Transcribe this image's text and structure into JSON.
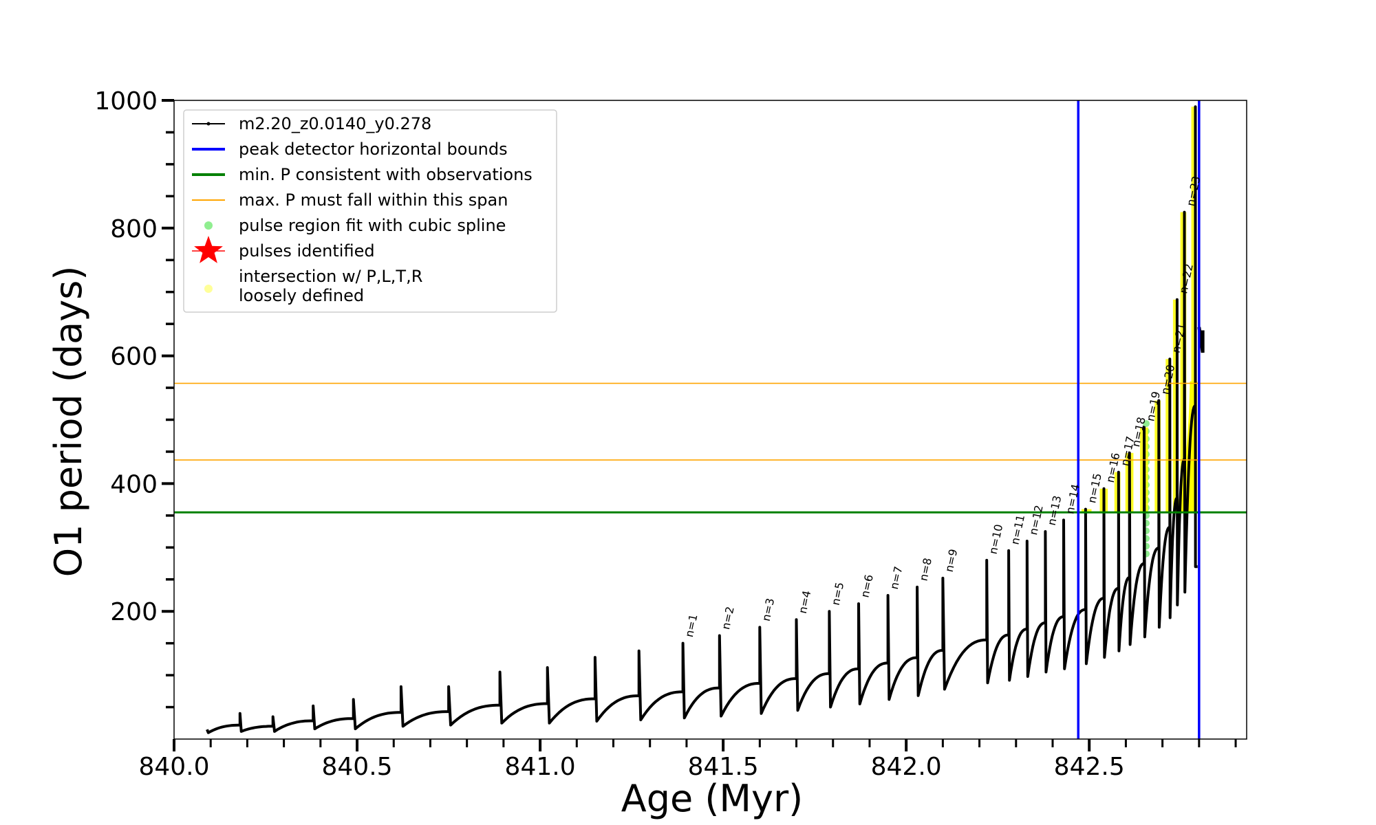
{
  "chart_data": {
    "type": "line",
    "xlabel": "Age (Myr)",
    "ylabel": "O1 period (days)",
    "xlim": [
      840.0,
      842.93
    ],
    "ylim": [
      0,
      1000
    ],
    "x_ticks": [
      840.0,
      840.5,
      841.0,
      841.5,
      842.0,
      842.5
    ],
    "x_tick_labels": [
      "840.0",
      "840.5",
      "841.0",
      "841.5",
      "842.0",
      "842.5"
    ],
    "y_ticks": [
      200,
      400,
      600,
      800,
      1000
    ],
    "y_tick_labels": [
      "200",
      "400",
      "600",
      "800",
      "1000"
    ],
    "legend_position": "top-left",
    "legend": [
      {
        "label": "m2.20_z0.0140_y0.278",
        "color": "#000000",
        "kind": "line-marker"
      },
      {
        "label": "peak detector horizontal bounds",
        "color": "#0000ff",
        "kind": "line"
      },
      {
        "label": "min. P consistent with observations",
        "color": "#008000",
        "kind": "line"
      },
      {
        "label": "max. P must fall within this span",
        "color": "#ffa500",
        "kind": "thin-line"
      },
      {
        "label": "pulse region fit with cubic spline",
        "color": "#90ee90",
        "kind": "dot"
      },
      {
        "label": "pulses identified",
        "color": "#ff0000",
        "kind": "star"
      },
      {
        "label": [
          "intersection w/ P,L,T,R",
          "loosely defined"
        ],
        "color": "#ffff99",
        "kind": "dot"
      }
    ],
    "vertical_lines": [
      842.47,
      842.8
    ],
    "hlines": [
      {
        "y": 355,
        "color": "#008000",
        "width": 3
      },
      {
        "y": 437,
        "color": "#ffa500",
        "width": 1.6
      },
      {
        "y": 557,
        "color": "#ffa500",
        "width": 1.6
      }
    ],
    "pulses": [
      {
        "x": 840.09,
        "peak": 15,
        "min": 10,
        "label": ""
      },
      {
        "x": 840.18,
        "peak": 40,
        "min": 12,
        "label": ""
      },
      {
        "x": 840.27,
        "peak": 35,
        "min": 12,
        "label": ""
      },
      {
        "x": 840.38,
        "peak": 52,
        "min": 16,
        "label": ""
      },
      {
        "x": 840.49,
        "peak": 62,
        "min": 16,
        "label": ""
      },
      {
        "x": 840.62,
        "peak": 82,
        "min": 20,
        "label": ""
      },
      {
        "x": 840.75,
        "peak": 82,
        "min": 22,
        "label": ""
      },
      {
        "x": 840.89,
        "peak": 105,
        "min": 25,
        "label": ""
      },
      {
        "x": 841.02,
        "peak": 112,
        "min": 25,
        "label": ""
      },
      {
        "x": 841.15,
        "peak": 128,
        "min": 28,
        "label": ""
      },
      {
        "x": 841.27,
        "peak": 138,
        "min": 30,
        "label": ""
      },
      {
        "x": 841.39,
        "peak": 150,
        "min": 33,
        "label": "n=1"
      },
      {
        "x": 841.49,
        "peak": 162,
        "min": 36,
        "label": "n=2"
      },
      {
        "x": 841.6,
        "peak": 175,
        "min": 40,
        "label": "n=3"
      },
      {
        "x": 841.7,
        "peak": 187,
        "min": 45,
        "label": "n=4"
      },
      {
        "x": 841.79,
        "peak": 200,
        "min": 50,
        "label": "n=5"
      },
      {
        "x": 841.87,
        "peak": 212,
        "min": 55,
        "label": "n=6"
      },
      {
        "x": 841.95,
        "peak": 225,
        "min": 62,
        "label": "n=7"
      },
      {
        "x": 842.03,
        "peak": 238,
        "min": 68,
        "label": "n=8"
      },
      {
        "x": 842.1,
        "peak": 252,
        "min": 78,
        "label": "n=9"
      },
      {
        "x": 842.22,
        "peak": 280,
        "min": 88,
        "label": "n=10"
      },
      {
        "x": 842.28,
        "peak": 295,
        "min": 92,
        "label": "n=11"
      },
      {
        "x": 842.33,
        "peak": 310,
        "min": 98,
        "label": "n=12"
      },
      {
        "x": 842.38,
        "peak": 325,
        "min": 105,
        "label": "n=13"
      },
      {
        "x": 842.43,
        "peak": 343,
        "min": 110,
        "label": "n=14"
      },
      {
        "x": 842.49,
        "peak": 360,
        "min": 118,
        "label": "n=15"
      },
      {
        "x": 842.54,
        "peak": 392,
        "min": 128,
        "label": "n=16"
      },
      {
        "x": 842.58,
        "peak": 418,
        "min": 138,
        "label": "n=17"
      },
      {
        "x": 842.61,
        "peak": 448,
        "min": 148,
        "label": "n=18"
      },
      {
        "x": 842.65,
        "peak": 488,
        "min": 160,
        "label": "n=19"
      },
      {
        "x": 842.69,
        "peak": 530,
        "min": 175,
        "label": "n=20"
      },
      {
        "x": 842.72,
        "peak": 595,
        "min": 190,
        "label": "n=21"
      },
      {
        "x": 842.74,
        "peak": 688,
        "min": 210,
        "label": "n=22"
      },
      {
        "x": 842.76,
        "peak": 825,
        "min": 230,
        "label": "n=23"
      },
      {
        "x": 842.79,
        "peak": 990,
        "min": 270,
        "label": ""
      }
    ],
    "tail": {
      "x": [
        842.8,
        842.81
      ],
      "y": [
        605,
        645
      ]
    }
  }
}
